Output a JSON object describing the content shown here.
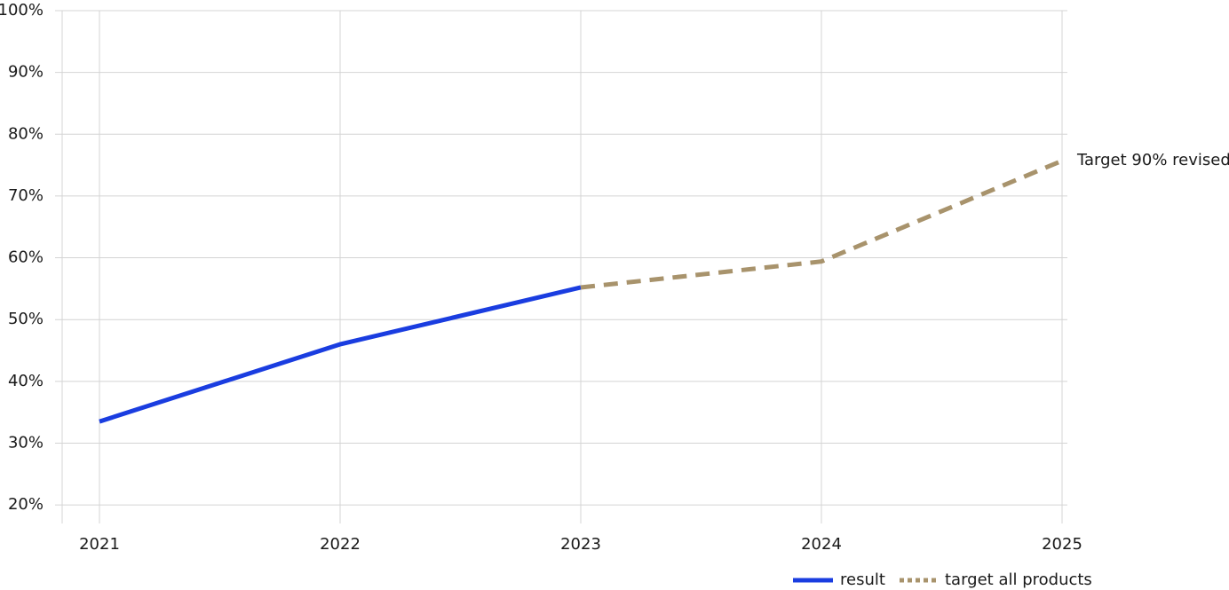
{
  "chart_data": {
    "type": "line",
    "categories": [
      "2021",
      "2022",
      "2023",
      "2024",
      "2025"
    ],
    "series": [
      {
        "name": "result",
        "color": "#1a3de0",
        "style": "solid",
        "values": [
          33.5,
          46.0,
          55.2,
          null,
          null
        ]
      },
      {
        "name": "target all products",
        "color": "#a8936c",
        "style": "dashed",
        "values": [
          null,
          null,
          55.2,
          59.4,
          75.7
        ]
      }
    ],
    "annotation": "Target 90% revised",
    "ylim": [
      17,
      100
    ],
    "yticks": [
      {
        "value": 20,
        "label": "20%"
      },
      {
        "value": 30,
        "label": "30%"
      },
      {
        "value": 40,
        "label": "40%"
      },
      {
        "value": 50,
        "label": "50%"
      },
      {
        "value": 60,
        "label": "60%"
      },
      {
        "value": 70,
        "label": "70%"
      },
      {
        "value": 80,
        "label": "80%"
      },
      {
        "value": 90,
        "label": "90%"
      },
      {
        "value": 100,
        "label": "100%"
      }
    ],
    "grid": true,
    "legend": "bottom-right"
  }
}
